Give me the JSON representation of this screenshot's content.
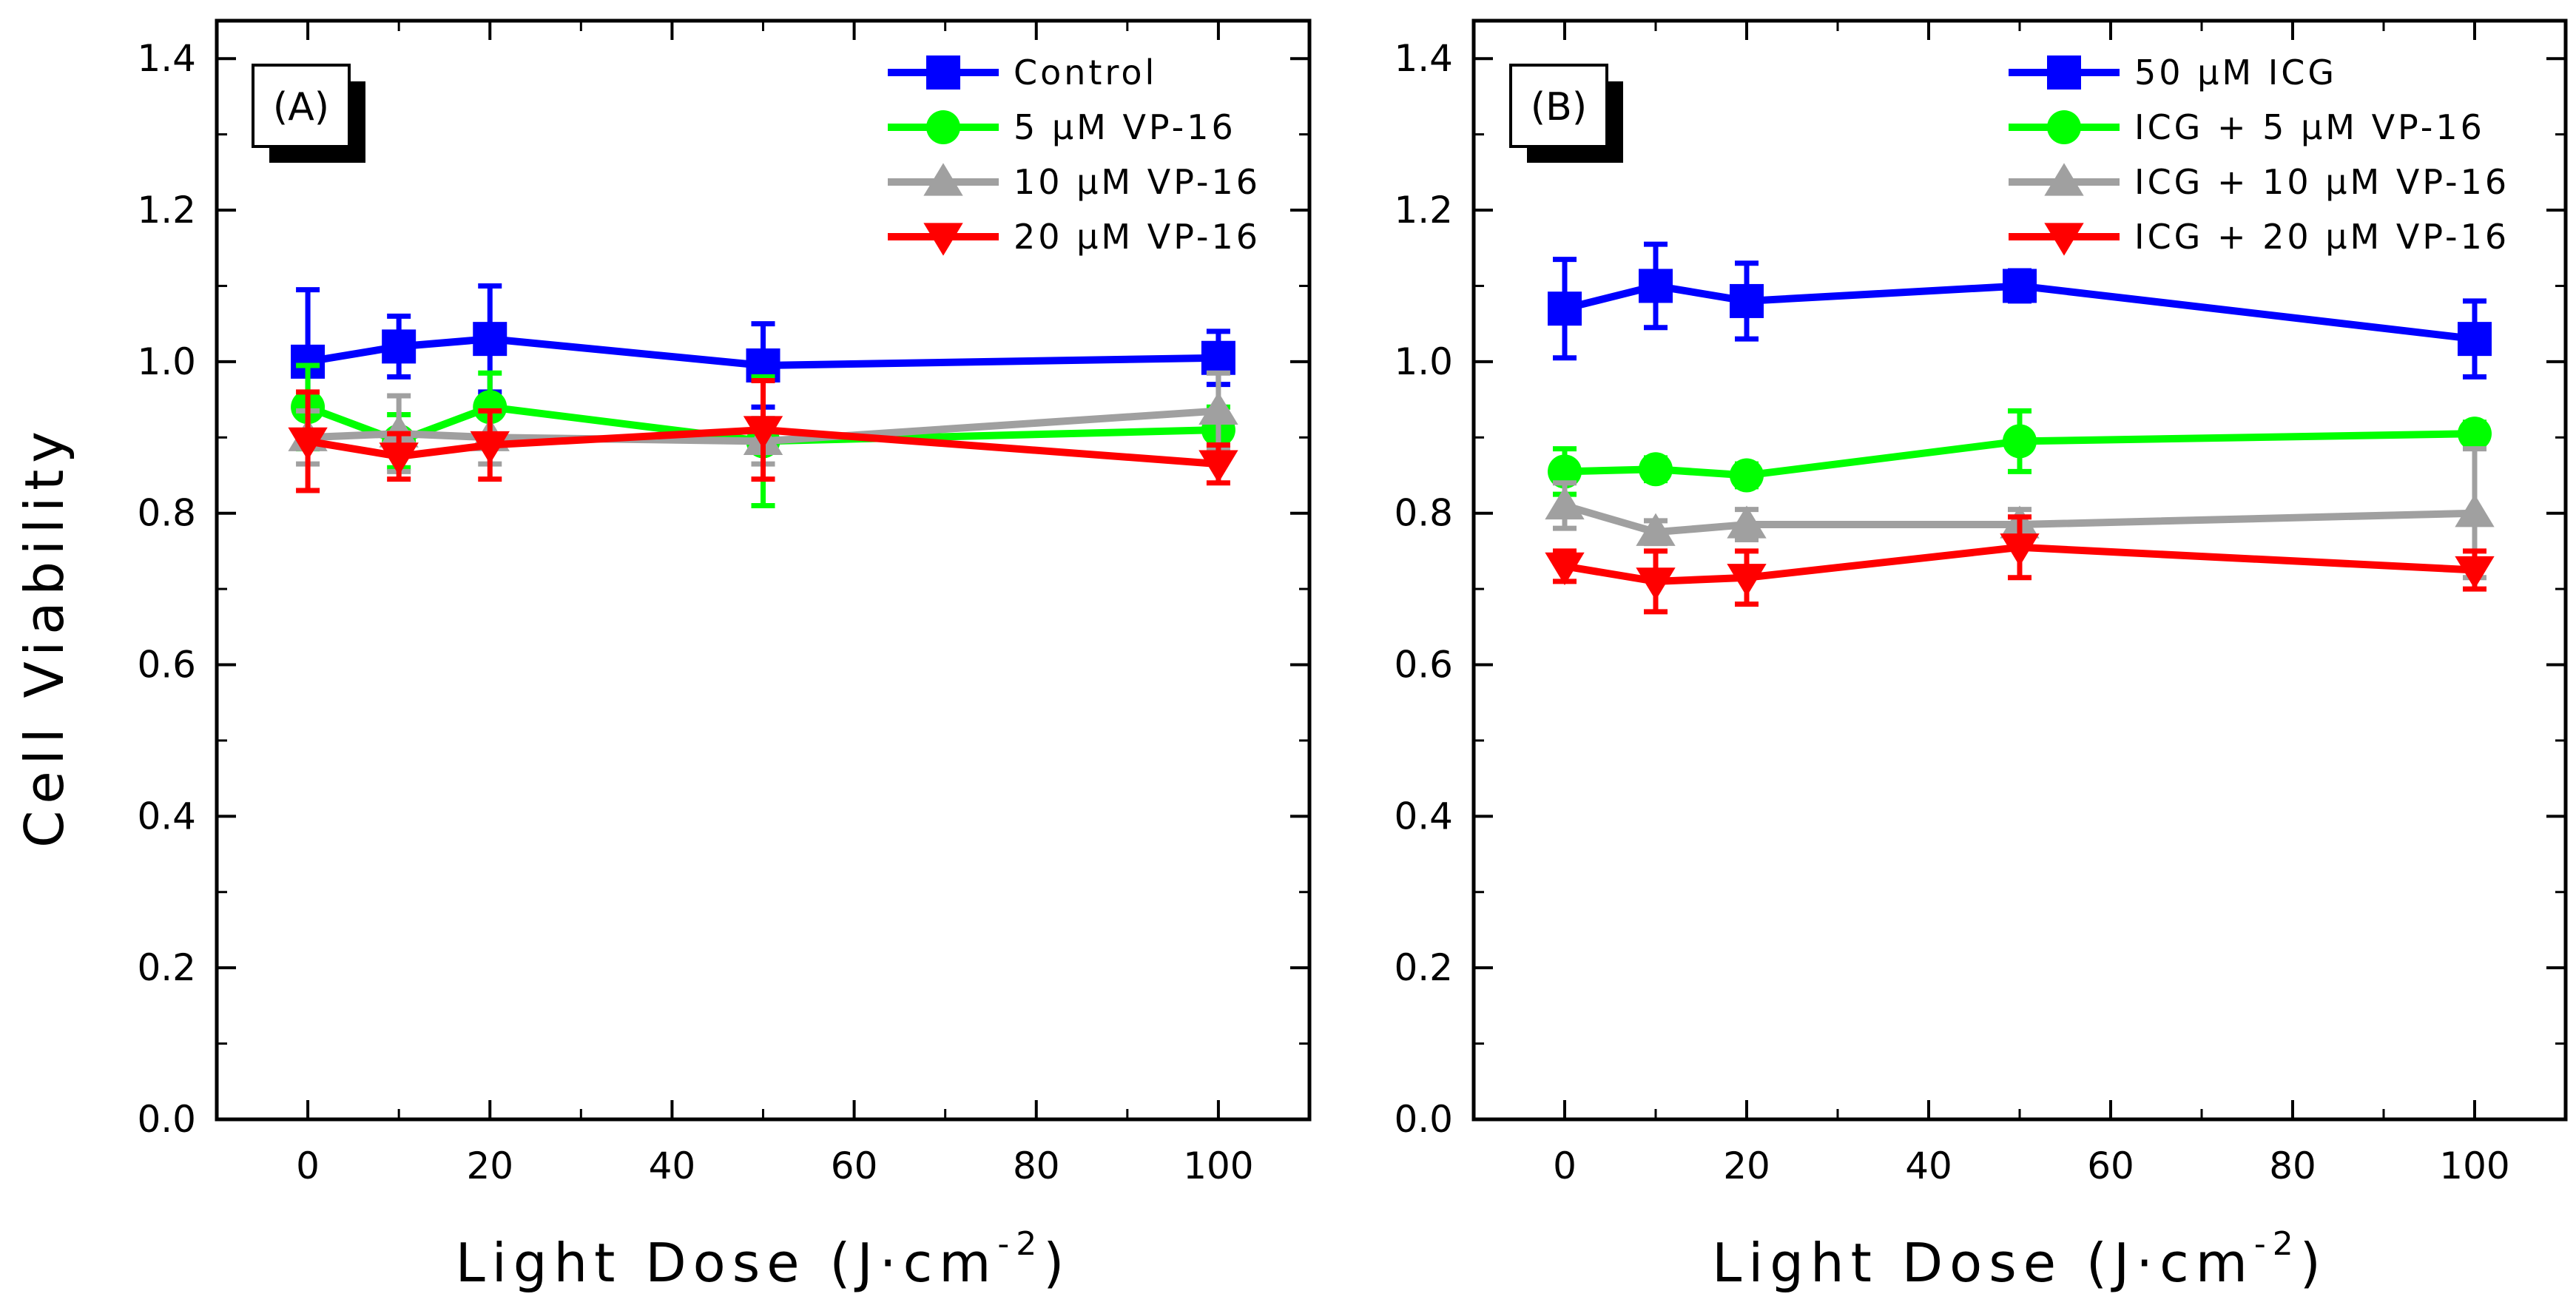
{
  "chart_data": [
    {
      "type": "line",
      "panel_label": "(A)",
      "xlabel": "Light Dose (J·cm",
      "xlabel_sup": "-2",
      "xlabel_close": ")",
      "ylabel": "Cell Viability",
      "xlim": [
        -10,
        110
      ],
      "ylim": [
        0.0,
        1.45
      ],
      "xticks": [
        0,
        20,
        40,
        60,
        80,
        100
      ],
      "xtick_labels": [
        "0",
        "20",
        "40",
        "60",
        "80",
        "100"
      ],
      "yticks": [
        0.0,
        0.2,
        0.4,
        0.6,
        0.8,
        1.0,
        1.2,
        1.4
      ],
      "ytick_labels": [
        "0.0",
        "0.2",
        "0.4",
        "0.6",
        "0.8",
        "1.0",
        "1.2",
        "1.4"
      ],
      "legend_position": "top-right",
      "x": [
        0,
        10,
        20,
        50,
        100
      ],
      "series": [
        {
          "name": "Control",
          "color": "#0000ff",
          "marker": "square",
          "values": [
            1.0,
            1.02,
            1.03,
            0.995,
            1.005
          ],
          "errors": [
            0.095,
            0.04,
            0.07,
            0.055,
            0.035
          ]
        },
        {
          "name": "5 μM VP-16",
          "color": "#00ff00",
          "marker": "circle",
          "values": [
            0.94,
            0.895,
            0.94,
            0.895,
            0.91
          ],
          "errors": [
            0.055,
            0.035,
            0.045,
            0.085,
            0.03
          ]
        },
        {
          "name": "10 μM VP-16",
          "color": "#a0a0a0",
          "marker": "triangle-up",
          "values": [
            0.9,
            0.905,
            0.9,
            0.895,
            0.935
          ],
          "errors": [
            0.035,
            0.05,
            0.035,
            0.03,
            0.05
          ]
        },
        {
          "name": "20 μM VP-16",
          "color": "#ff0000",
          "marker": "triangle-down",
          "values": [
            0.895,
            0.875,
            0.89,
            0.91,
            0.865
          ],
          "errors": [
            0.065,
            0.03,
            0.045,
            0.065,
            0.025
          ]
        }
      ]
    },
    {
      "type": "line",
      "panel_label": "(B)",
      "xlabel": "Light Dose (J·cm",
      "xlabel_sup": "-2",
      "xlabel_close": ")",
      "ylabel": "",
      "xlim": [
        -10,
        110
      ],
      "ylim": [
        0.0,
        1.45
      ],
      "xticks": [
        0,
        20,
        40,
        60,
        80,
        100
      ],
      "xtick_labels": [
        "0",
        "20",
        "40",
        "60",
        "80",
        "100"
      ],
      "yticks": [
        0.0,
        0.2,
        0.4,
        0.6,
        0.8,
        1.0,
        1.2,
        1.4
      ],
      "ytick_labels": [
        "0.0",
        "0.2",
        "0.4",
        "0.6",
        "0.8",
        "1.0",
        "1.2",
        "1.4"
      ],
      "legend_position": "top-right",
      "x": [
        0,
        10,
        20,
        50,
        100
      ],
      "series": [
        {
          "name": "50 μM ICG",
          "color": "#0000ff",
          "marker": "square",
          "values": [
            1.07,
            1.1,
            1.08,
            1.1,
            1.03
          ],
          "errors": [
            0.065,
            0.055,
            0.05,
            0.02,
            0.05
          ]
        },
        {
          "name": "ICG + 5 μM VP-16",
          "color": "#00ff00",
          "marker": "circle",
          "values": [
            0.855,
            0.858,
            0.85,
            0.895,
            0.905
          ],
          "errors": [
            0.03,
            0.015,
            0.015,
            0.04,
            0.015
          ]
        },
        {
          "name": "ICG + 10 μM VP-16",
          "color": "#a0a0a0",
          "marker": "triangle-up",
          "values": [
            0.81,
            0.775,
            0.785,
            0.785,
            0.8
          ],
          "errors": [
            0.03,
            0.015,
            0.02,
            0.02,
            0.085
          ]
        },
        {
          "name": "ICG + 20 μM VP-16",
          "color": "#ff0000",
          "marker": "triangle-down",
          "values": [
            0.73,
            0.71,
            0.715,
            0.755,
            0.725
          ],
          "errors": [
            0.02,
            0.04,
            0.035,
            0.04,
            0.025
          ]
        }
      ]
    }
  ]
}
